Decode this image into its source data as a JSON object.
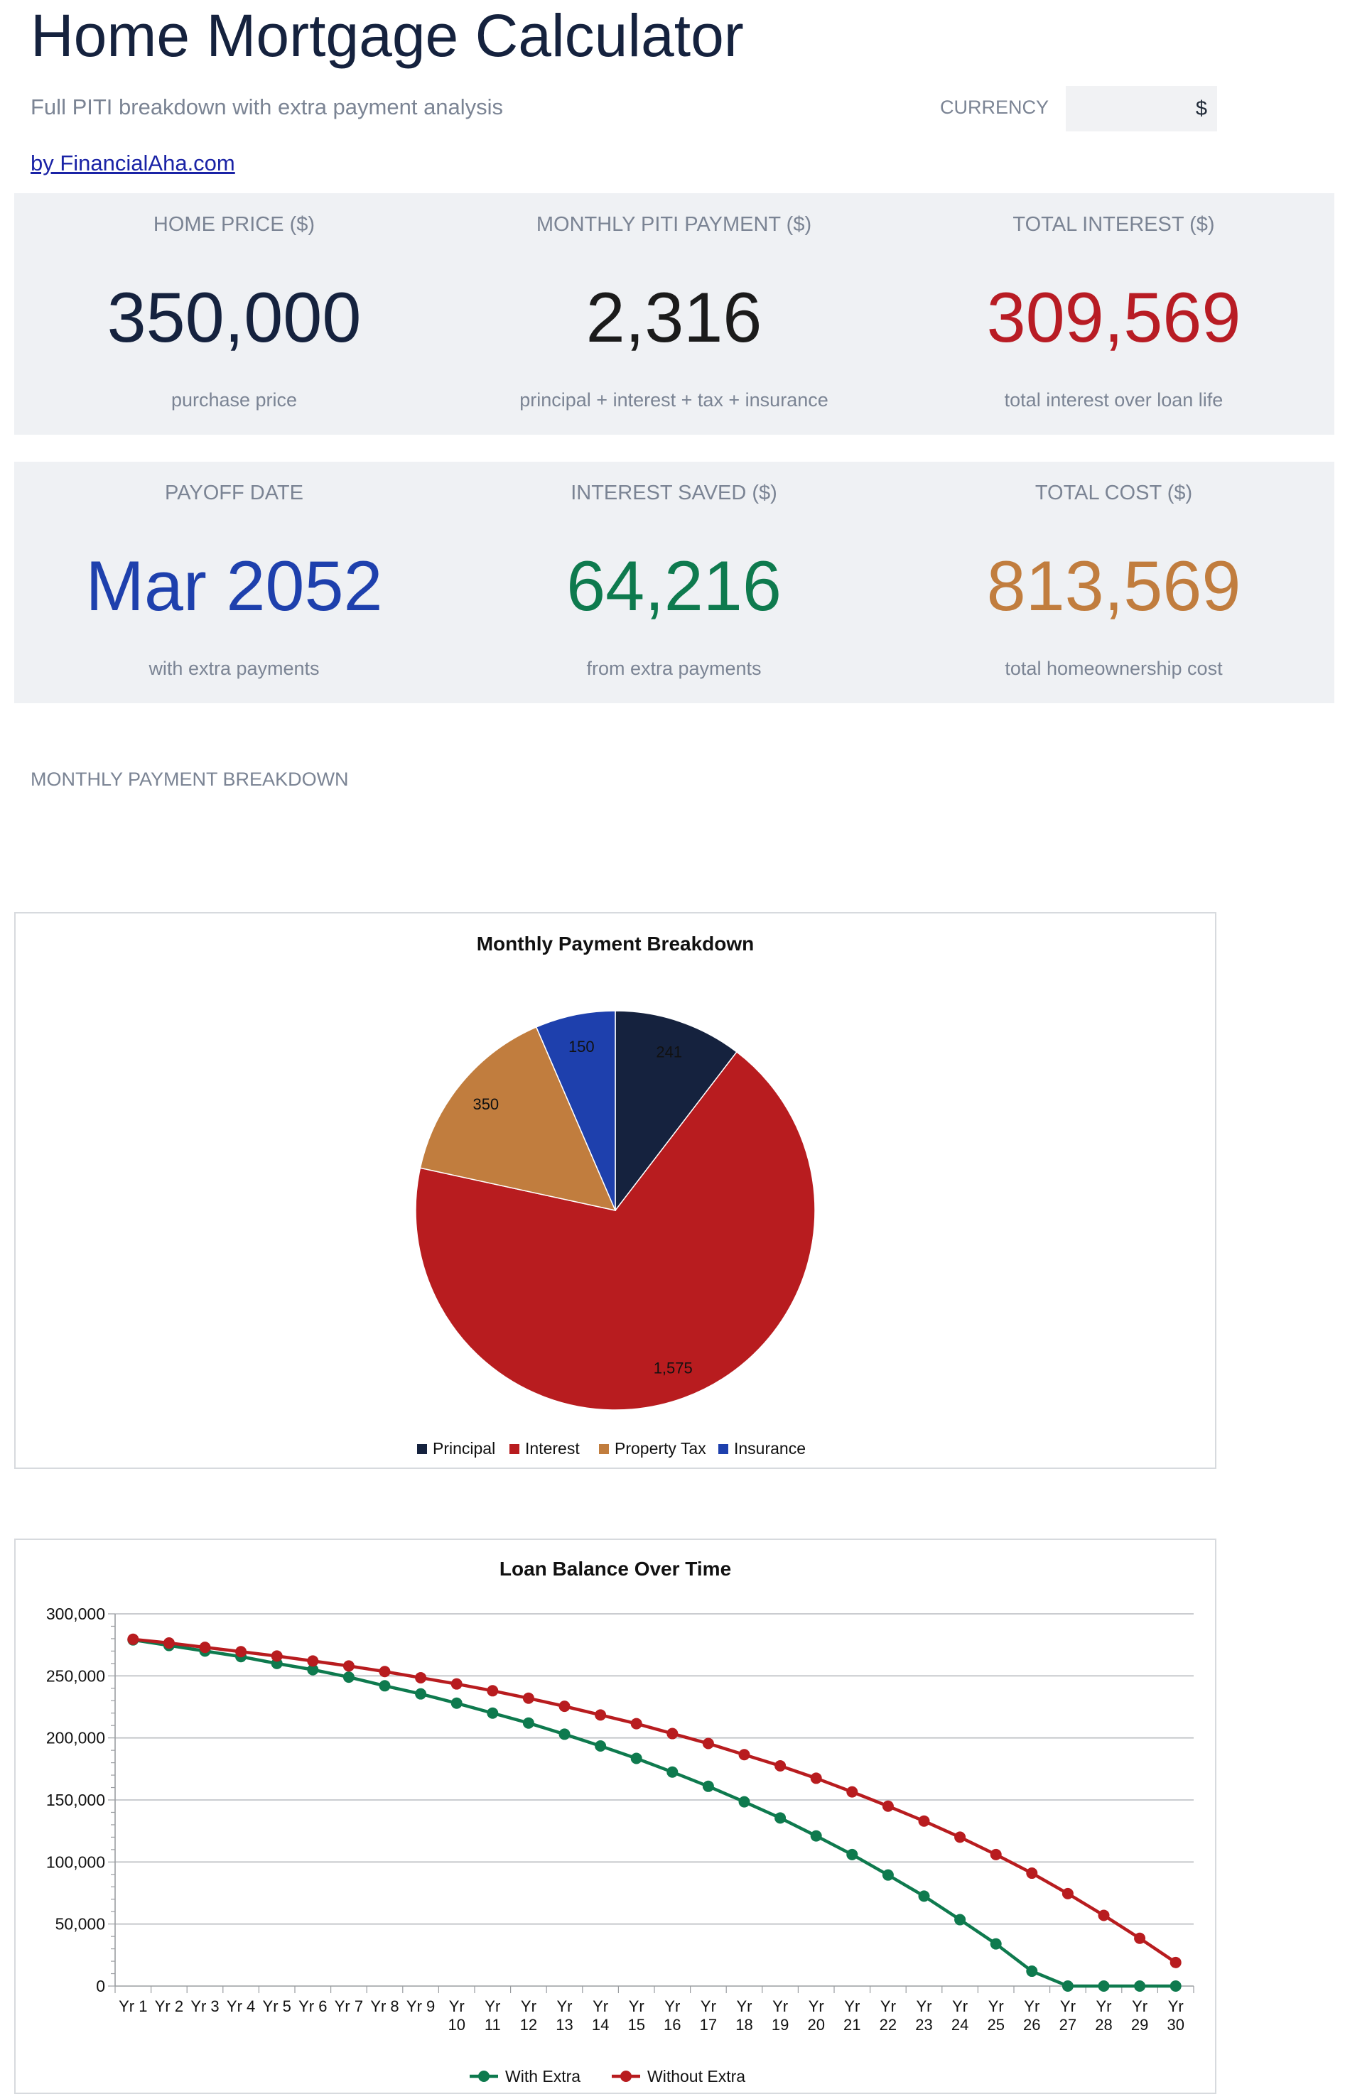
{
  "header": {
    "title": "Home Mortgage Calculator",
    "subtitle": "Full PITI breakdown with extra payment analysis",
    "currency_label": "CURRENCY",
    "currency_value": "$",
    "link": "by FinancialAha.com"
  },
  "kpis_row1": [
    {
      "label": "HOME PRICE ($)",
      "value": "350,000",
      "sub": "purchase price",
      "color": "#15223e"
    },
    {
      "label": "MONTHLY PITI PAYMENT ($)",
      "value": "2,316",
      "sub": "principal + interest + tax + insurance",
      "color": "#1b1b1b"
    },
    {
      "label": "TOTAL INTEREST ($)",
      "value": "309,569",
      "sub": "total interest over loan life",
      "color": "#b81c24"
    }
  ],
  "kpis_row2": [
    {
      "label": "PAYOFF DATE",
      "value": "Mar 2052",
      "sub": "with extra payments",
      "color": "#1e40ad"
    },
    {
      "label": "INTEREST SAVED ($)",
      "value": "64,216",
      "sub": "from extra payments",
      "color": "#0e7a4e"
    },
    {
      "label": "TOTAL COST ($)",
      "value": "813,569",
      "sub": "total homeownership cost",
      "color": "#c17d3e"
    }
  ],
  "section_label": "MONTHLY PAYMENT BREAKDOWN",
  "chart_data": [
    {
      "type": "pie",
      "title": "Monthly Payment Breakdown",
      "categories": [
        "Principal",
        "Interest",
        "Property Tax",
        "Insurance"
      ],
      "values": [
        241,
        1575,
        350,
        150
      ],
      "data_labels": [
        "241",
        "1,575",
        "350",
        "150"
      ],
      "colors": [
        "#15223e",
        "#b81c1f",
        "#c17d3e",
        "#1e40ad"
      ],
      "legend": "bottom"
    },
    {
      "type": "line",
      "title": "Loan Balance Over Time",
      "categories": [
        "Yr 1",
        "Yr 2",
        "Yr 3",
        "Yr 4",
        "Yr 5",
        "Yr 6",
        "Yr 7",
        "Yr 8",
        "Yr 9",
        "Yr 10",
        "Yr 11",
        "Yr 12",
        "Yr 13",
        "Yr 14",
        "Yr 15",
        "Yr 16",
        "Yr 17",
        "Yr 18",
        "Yr 19",
        "Yr 20",
        "Yr 21",
        "Yr 22",
        "Yr 23",
        "Yr 24",
        "Yr 25",
        "Yr 26",
        "Yr 27",
        "Yr 28",
        "Yr 29",
        "Yr 30"
      ],
      "series": [
        {
          "name": "With Extra",
          "color": "#0e7a4e",
          "values": [
            279000,
            274500,
            270000,
            265500,
            260000,
            255000,
            249000,
            242000,
            235500,
            228000,
            220000,
            212000,
            203000,
            193500,
            183500,
            172500,
            161000,
            148500,
            135500,
            121000,
            106000,
            89500,
            72500,
            53500,
            34000,
            12000,
            0,
            0,
            0,
            0
          ]
        },
        {
          "name": "Without Extra",
          "color": "#b81c1f",
          "values": [
            279500,
            276500,
            273000,
            269500,
            266000,
            262000,
            258000,
            253500,
            248500,
            243500,
            238000,
            232000,
            225500,
            218500,
            211500,
            203500,
            195500,
            186500,
            177500,
            167500,
            156500,
            145000,
            133000,
            120000,
            106000,
            91000,
            74500,
            57000,
            38500,
            19000
          ]
        }
      ],
      "yticks": [
        "0",
        "50,000",
        "100,000",
        "150,000",
        "200,000",
        "250,000",
        "300,000"
      ],
      "ylim": [
        0,
        300000
      ],
      "grid": true,
      "legend": "bottom"
    }
  ]
}
